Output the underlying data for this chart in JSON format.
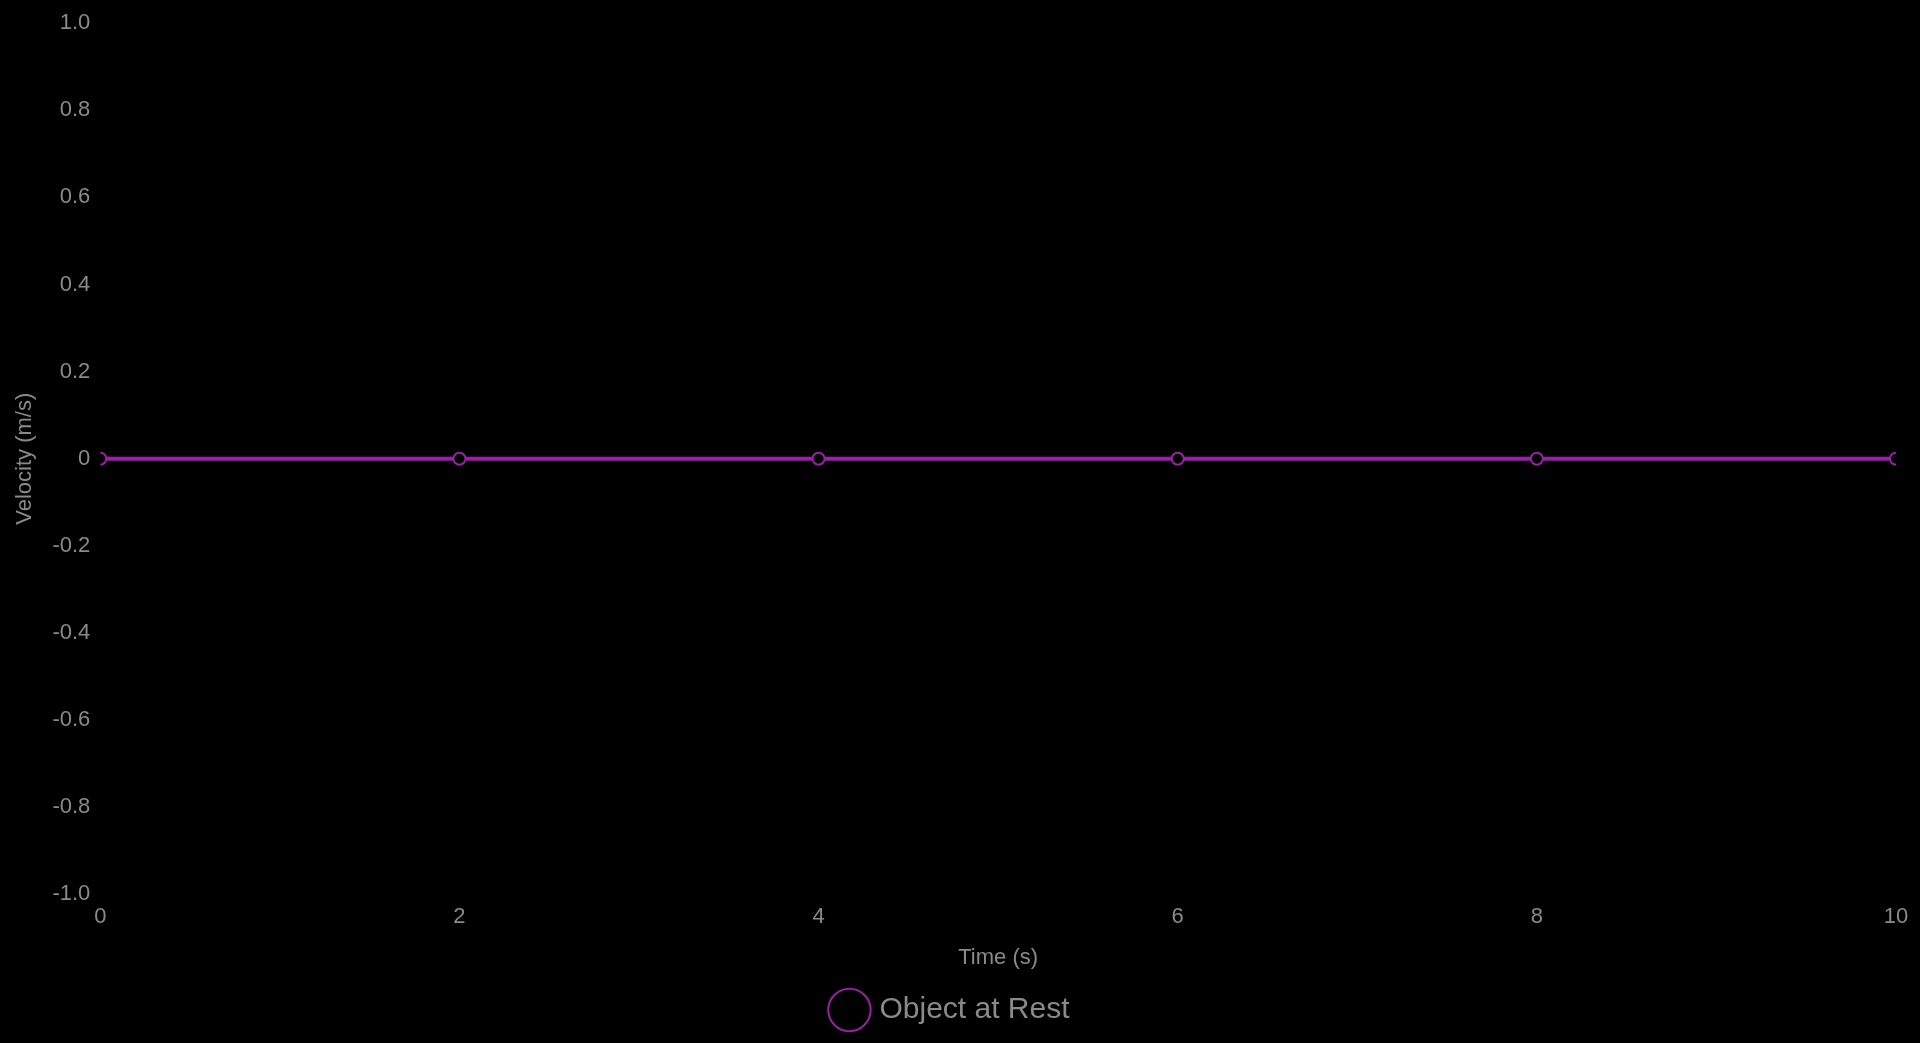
{
  "chart_data": {
    "type": "line",
    "xlabel": "Time (s)",
    "ylabel": "Velocity (m/s)",
    "x": [
      0,
      2,
      4,
      6,
      8,
      10
    ],
    "series": [
      {
        "name": "Object at Rest",
        "color": "#9c1fa8",
        "values": [
          0,
          0,
          0,
          0,
          0,
          0
        ]
      }
    ],
    "xlim": [
      0,
      10
    ],
    "xticks": [
      0,
      2,
      4,
      6,
      8,
      10
    ],
    "ylim": [
      -1,
      1
    ],
    "yticks": [
      {
        "value": -1,
        "label": "-1.0"
      },
      {
        "value": -0.8,
        "label": "-0.8"
      },
      {
        "value": -0.6,
        "label": "-0.6"
      },
      {
        "value": -0.4,
        "label": "-0.4"
      },
      {
        "value": -0.2,
        "label": "-0.2"
      },
      0,
      {
        "value": 0.2,
        "label": "0.2"
      },
      {
        "value": 0.4,
        "label": "0.4"
      },
      {
        "value": 0.6,
        "label": "0.6"
      },
      {
        "value": 0.8,
        "label": "0.8"
      },
      {
        "value": 1,
        "label": "1.0"
      }
    ],
    "grid": false,
    "legend": "bottom",
    "marker": "circle",
    "line_style": "solid"
  }
}
